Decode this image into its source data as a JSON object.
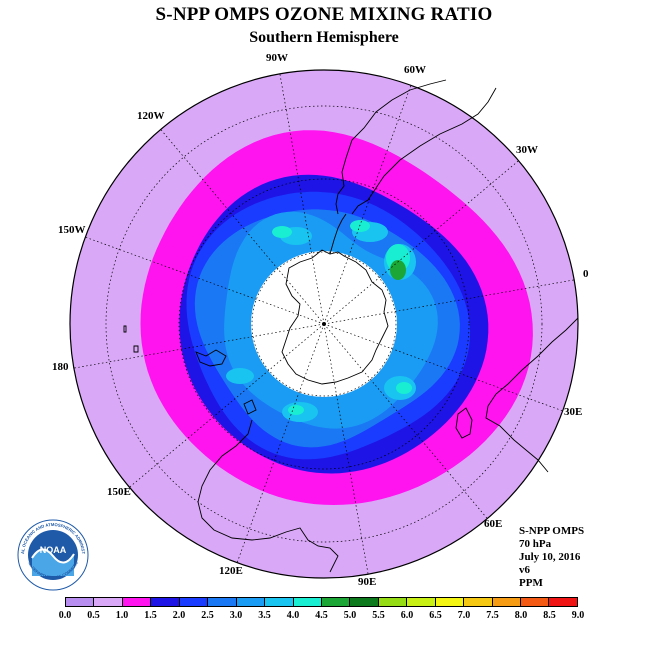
{
  "title": "S-NPP OMPS OZONE MIXING RATIO",
  "subtitle": "Southern Hemisphere",
  "longitude_labels": [
    "90W",
    "60W",
    "30W",
    "0",
    "30E",
    "60E",
    "90E",
    "120E",
    "150E",
    "180",
    "150W",
    "120W"
  ],
  "info": {
    "instrument": "S-NPP OMPS",
    "level": "70 hPa",
    "date": "July 10, 2016",
    "version": "v6",
    "units": "PPM"
  },
  "logo": {
    "text": "NOAA",
    "ring_text": "NATIONAL OCEANIC AND ATMOSPHERIC ADMINISTRATION",
    "lower_text": "U.S. DEPARTMENT OF COMMERCE"
  },
  "colorbar": {
    "ticks": [
      "0.0",
      "0.5",
      "1.0",
      "1.5",
      "2.0",
      "2.5",
      "3.0",
      "3.5",
      "4.0",
      "4.5",
      "5.0",
      "5.5",
      "6.0",
      "6.5",
      "7.0",
      "7.5",
      "8.0",
      "8.5",
      "9.0"
    ],
    "colors": [
      "#b88ef0",
      "#d9a8f7",
      "#ff14f0",
      "#1e14e6",
      "#1a3cff",
      "#1a78f5",
      "#1a9cf5",
      "#19c4f0",
      "#19eed2",
      "#1ca636",
      "#0d7a1e",
      "#96dc14",
      "#c8f014",
      "#f5f514",
      "#f5c814",
      "#f59b14",
      "#f55a14",
      "#f01414",
      "#8c5032"
    ]
  },
  "map": {
    "levels_ppm": [
      0.5,
      1.0,
      1.5,
      2.0,
      2.5,
      3.0,
      3.5,
      4.0,
      4.5
    ],
    "pole_mask": "white circle (no data)"
  }
}
